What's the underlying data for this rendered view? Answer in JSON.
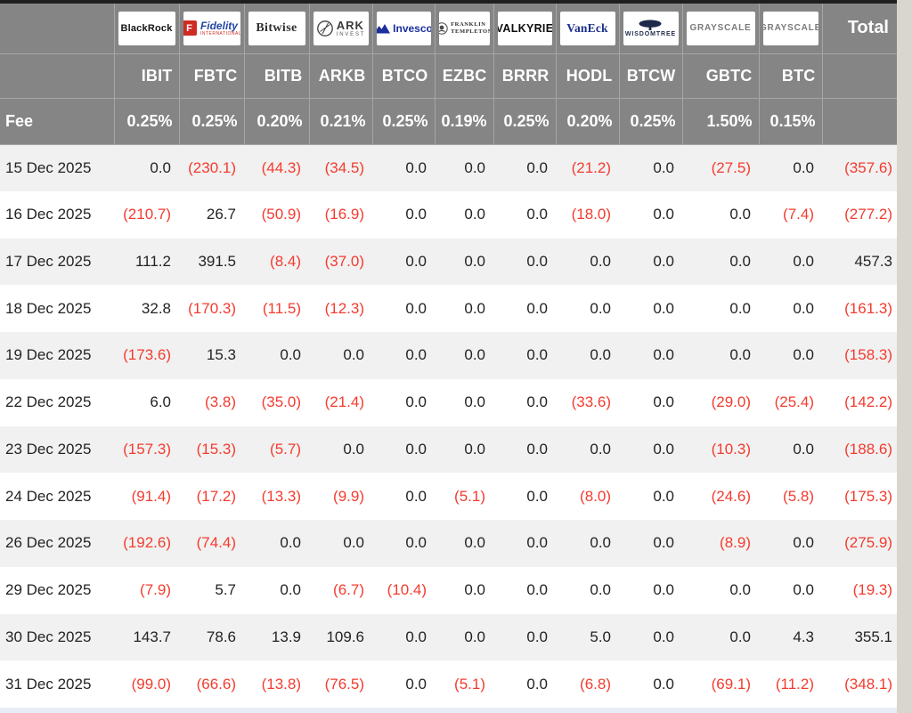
{
  "table": {
    "fee_label": "Fee",
    "total_label": "Total",
    "columns": [
      {
        "ticker": "IBIT",
        "fee": "0.25%",
        "logo": {
          "icon": "blackrock-logo",
          "lines": [
            "BlackRock"
          ]
        }
      },
      {
        "ticker": "FBTC",
        "fee": "0.25%",
        "logo": {
          "icon": "fidelity-logo",
          "icon_text": "F",
          "lines": [
            "Fidelity",
            "INTERNATIONAL"
          ]
        }
      },
      {
        "ticker": "BITB",
        "fee": "0.20%",
        "logo": {
          "icon": "bitwise-logo",
          "lines": [
            "Bitwise"
          ]
        }
      },
      {
        "ticker": "ARKB",
        "fee": "0.21%",
        "logo": {
          "icon": "ark-invest-logo",
          "lines": [
            "ARK",
            "INVEST"
          ]
        }
      },
      {
        "ticker": "BTCO",
        "fee": "0.25%",
        "logo": {
          "icon": "invesco-logo",
          "lines": [
            "Invesco"
          ]
        }
      },
      {
        "ticker": "EZBC",
        "fee": "0.19%",
        "logo": {
          "icon": "franklin-templeton-logo",
          "lines": [
            "FRANKLIN",
            "TEMPLETON"
          ]
        }
      },
      {
        "ticker": "BRRR",
        "fee": "0.25%",
        "logo": {
          "icon": "valkyrie-logo",
          "lines": [
            "VALKYRIE"
          ]
        }
      },
      {
        "ticker": "HODL",
        "fee": "0.20%",
        "logo": {
          "icon": "vaneck-logo",
          "lines": [
            "VanEck"
          ]
        }
      },
      {
        "ticker": "BTCW",
        "fee": "0.25%",
        "logo": {
          "icon": "wisdomtree-logo",
          "lines": [
            "WISDOMTREE"
          ]
        }
      },
      {
        "ticker": "GBTC",
        "fee": "1.50%",
        "logo": {
          "icon": "grayscale-logo",
          "lines": [
            "GRAYSCALE"
          ]
        }
      },
      {
        "ticker": "BTC",
        "fee": "0.15%",
        "logo": {
          "icon": "grayscale-logo",
          "lines": [
            "GRAYSCALE"
          ]
        }
      }
    ],
    "rows": [
      {
        "date": "15 Dec 2025",
        "values": [
          "0.0",
          "(230.1)",
          "(44.3)",
          "(34.5)",
          "0.0",
          "0.0",
          "0.0",
          "(21.2)",
          "0.0",
          "(27.5)",
          "0.0"
        ],
        "total": "(357.6)"
      },
      {
        "date": "16 Dec 2025",
        "values": [
          "(210.7)",
          "26.7",
          "(50.9)",
          "(16.9)",
          "0.0",
          "0.0",
          "0.0",
          "(18.0)",
          "0.0",
          "0.0",
          "(7.4)"
        ],
        "total": "(277.2)"
      },
      {
        "date": "17 Dec 2025",
        "values": [
          "111.2",
          "391.5",
          "(8.4)",
          "(37.0)",
          "0.0",
          "0.0",
          "0.0",
          "0.0",
          "0.0",
          "0.0",
          "0.0"
        ],
        "total": "457.3"
      },
      {
        "date": "18 Dec 2025",
        "values": [
          "32.8",
          "(170.3)",
          "(11.5)",
          "(12.3)",
          "0.0",
          "0.0",
          "0.0",
          "0.0",
          "0.0",
          "0.0",
          "0.0"
        ],
        "total": "(161.3)"
      },
      {
        "date": "19 Dec 2025",
        "values": [
          "(173.6)",
          "15.3",
          "0.0",
          "0.0",
          "0.0",
          "0.0",
          "0.0",
          "0.0",
          "0.0",
          "0.0",
          "0.0"
        ],
        "total": "(158.3)"
      },
      {
        "date": "22 Dec 2025",
        "values": [
          "6.0",
          "(3.8)",
          "(35.0)",
          "(21.4)",
          "0.0",
          "0.0",
          "0.0",
          "(33.6)",
          "0.0",
          "(29.0)",
          "(25.4)"
        ],
        "total": "(142.2)"
      },
      {
        "date": "23 Dec 2025",
        "values": [
          "(157.3)",
          "(15.3)",
          "(5.7)",
          "0.0",
          "0.0",
          "0.0",
          "0.0",
          "0.0",
          "0.0",
          "(10.3)",
          "0.0"
        ],
        "total": "(188.6)"
      },
      {
        "date": "24 Dec 2025",
        "values": [
          "(91.4)",
          "(17.2)",
          "(13.3)",
          "(9.9)",
          "0.0",
          "(5.1)",
          "0.0",
          "(8.0)",
          "0.0",
          "(24.6)",
          "(5.8)"
        ],
        "total": "(175.3)"
      },
      {
        "date": "26 Dec 2025",
        "values": [
          "(192.6)",
          "(74.4)",
          "0.0",
          "0.0",
          "0.0",
          "0.0",
          "0.0",
          "0.0",
          "0.0",
          "(8.9)",
          "0.0"
        ],
        "total": "(275.9)"
      },
      {
        "date": "29 Dec 2025",
        "values": [
          "(7.9)",
          "5.7",
          "0.0",
          "(6.7)",
          "(10.4)",
          "0.0",
          "0.0",
          "0.0",
          "0.0",
          "0.0",
          "0.0"
        ],
        "total": "(19.3)"
      },
      {
        "date": "30 Dec 2025",
        "values": [
          "143.7",
          "78.6",
          "13.9",
          "109.6",
          "0.0",
          "0.0",
          "0.0",
          "5.0",
          "0.0",
          "0.0",
          "4.3"
        ],
        "total": "355.1"
      },
      {
        "date": "31 Dec 2025",
        "values": [
          "(99.0)",
          "(66.6)",
          "(13.8)",
          "(76.5)",
          "0.0",
          "(5.1)",
          "0.0",
          "(6.8)",
          "0.0",
          "(69.1)",
          "(11.2)"
        ],
        "total": "(348.1)"
      }
    ]
  },
  "colors": {
    "negative_value": "#f43b2e",
    "header_background": "#858585",
    "row_alternate": "#f1f1f1",
    "bottom_strip": "#e8edf5"
  }
}
